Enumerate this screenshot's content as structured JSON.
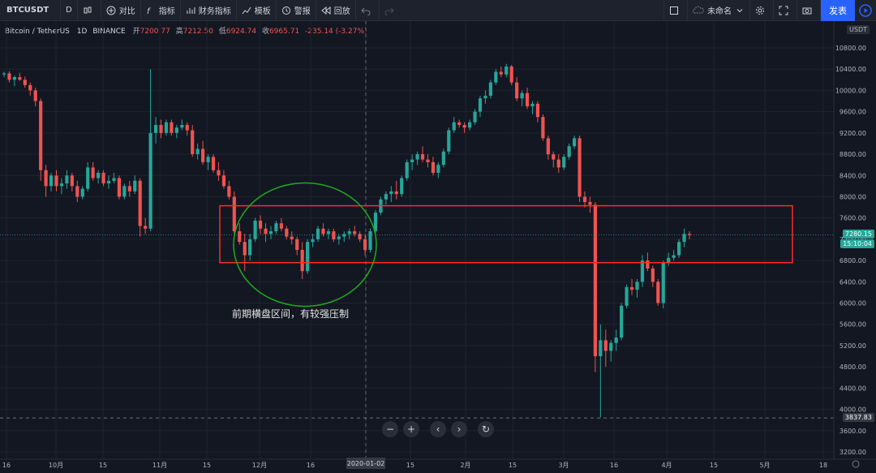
{
  "toolbar": {
    "symbol": "BTCUSDT",
    "interval": "D",
    "compare": "对比",
    "indicators": "指标",
    "financials": "财务指标",
    "templates": "模板",
    "alerts": "警报",
    "replay": "回放",
    "layout_name": "未命名",
    "publish": "发表"
  },
  "legend": {
    "name": "Bitcoin / TetherUS",
    "interval": "1D",
    "exchange": "BINANCE",
    "open_label": "开",
    "open": "7200.77",
    "high_label": "高",
    "high": "7212.50",
    "low_label": "低",
    "low": "6924.74",
    "close_label": "收",
    "close": "6965.71",
    "change": "-235.14 (-3.27%)"
  },
  "annotation": "前期横盘区间，有较强压制",
  "currency_tag": "USDT",
  "last_price": "7280.15",
  "countdown": "15:10:04",
  "crosshair_price": "3837.83",
  "crosshair_date": "2020-01-02",
  "colors": {
    "up": "#26a69a",
    "down": "#ef5350",
    "box": "#ff2b2b",
    "circle": "#1faa1f",
    "accent": "#2962ff"
  },
  "icons": [
    "compare-icon",
    "indicators-icon",
    "financials-icon",
    "templates-icon",
    "alert-icon",
    "replay-icon",
    "undo-icon",
    "redo-icon",
    "fullscreen-icon",
    "camera-icon",
    "settings-icon",
    "cloud-icon",
    "play-icon",
    "zoom-out-icon",
    "zoom-in-icon",
    "scroll-left-icon",
    "scroll-right-icon",
    "reset-icon"
  ],
  "chart_data": {
    "type": "candlestick",
    "y_axis_ticks": [
      10800,
      10400,
      10000,
      9600,
      9200,
      8800,
      8400,
      8000,
      7600,
      7200,
      6800,
      6400,
      6000,
      5600,
      5200,
      4800,
      4400,
      4000,
      3600,
      3200
    ],
    "ylim": [
      3200,
      11000
    ],
    "x_axis_ticks": [
      "16",
      "10月",
      "15",
      "11月",
      "15",
      "12月",
      "16",
      "2020-01-02",
      "15",
      "2月",
      "15",
      "3月",
      "16",
      "4月",
      "15",
      "5月",
      "18"
    ],
    "candles": [
      [
        10300,
        10350,
        10250,
        10320
      ],
      [
        10320,
        10360,
        10150,
        10200
      ],
      [
        10200,
        10280,
        10080,
        10250
      ],
      [
        10250,
        10330,
        10180,
        10200
      ],
      [
        10200,
        10260,
        10050,
        10100
      ],
      [
        10100,
        10150,
        9900,
        10000
      ],
      [
        10000,
        10050,
        9700,
        9800
      ],
      [
        9800,
        9850,
        8300,
        8500
      ],
      [
        8500,
        8600,
        8000,
        8200
      ],
      [
        8200,
        8450,
        8100,
        8400
      ],
      [
        8400,
        8500,
        8100,
        8200
      ],
      [
        8200,
        8350,
        8050,
        8250
      ],
      [
        8250,
        8500,
        8150,
        8400
      ],
      [
        8400,
        8450,
        8100,
        8200
      ],
      [
        8200,
        8300,
        7900,
        8000
      ],
      [
        8000,
        8200,
        7950,
        8150
      ],
      [
        8150,
        8650,
        8100,
        8550
      ],
      [
        8550,
        8650,
        8300,
        8350
      ],
      [
        8350,
        8500,
        8250,
        8450
      ],
      [
        8450,
        8500,
        8200,
        8250
      ],
      [
        8250,
        8400,
        8150,
        8300
      ],
      [
        8300,
        8450,
        8250,
        8350
      ],
      [
        8350,
        8400,
        7950,
        8000
      ],
      [
        8000,
        8250,
        7950,
        8200
      ],
      [
        8200,
        8300,
        8000,
        8100
      ],
      [
        8100,
        8400,
        8050,
        8300
      ],
      [
        8300,
        8350,
        7250,
        7450
      ],
      [
        7450,
        7600,
        7300,
        7400
      ],
      [
        7400,
        10400,
        7350,
        9200
      ],
      [
        9200,
        9500,
        9000,
        9350
      ],
      [
        9350,
        9450,
        9100,
        9200
      ],
      [
        9200,
        9450,
        9150,
        9400
      ],
      [
        9400,
        9450,
        9150,
        9200
      ],
      [
        9200,
        9350,
        9100,
        9300
      ],
      [
        9300,
        9450,
        9250,
        9350
      ],
      [
        9350,
        9400,
        9150,
        9250
      ],
      [
        9250,
        9350,
        8750,
        8800
      ],
      [
        8800,
        9000,
        8700,
        8900
      ],
      [
        8900,
        9050,
        8600,
        8650
      ],
      [
        8650,
        8800,
        8500,
        8750
      ],
      [
        8750,
        8800,
        8450,
        8500
      ],
      [
        8500,
        8650,
        8300,
        8400
      ],
      [
        8400,
        8500,
        8150,
        8200
      ],
      [
        8200,
        8300,
        7950,
        8000
      ],
      [
        8000,
        8100,
        7300,
        7350
      ],
      [
        7350,
        7500,
        7100,
        7150
      ],
      [
        7150,
        7300,
        6600,
        6900
      ],
      [
        6900,
        7300,
        6800,
        7200
      ],
      [
        7200,
        7600,
        7150,
        7550
      ],
      [
        7550,
        7650,
        7300,
        7400
      ],
      [
        7400,
        7500,
        7150,
        7300
      ],
      [
        7300,
        7450,
        7200,
        7350
      ],
      [
        7350,
        7550,
        7300,
        7500
      ],
      [
        7500,
        7600,
        7350,
        7400
      ],
      [
        7400,
        7450,
        7200,
        7250
      ],
      [
        7250,
        7350,
        7100,
        7200
      ],
      [
        7200,
        7250,
        6900,
        7000
      ],
      [
        7000,
        7150,
        6450,
        6600
      ],
      [
        6600,
        7200,
        6550,
        7150
      ],
      [
        7150,
        7300,
        7050,
        7200
      ],
      [
        7200,
        7450,
        7150,
        7400
      ],
      [
        7400,
        7500,
        7250,
        7300
      ],
      [
        7300,
        7400,
        7200,
        7350
      ],
      [
        7350,
        7400,
        7150,
        7200
      ],
      [
        7200,
        7300,
        7100,
        7250
      ],
      [
        7250,
        7350,
        7150,
        7300
      ],
      [
        7300,
        7400,
        7200,
        7350
      ],
      [
        7350,
        7450,
        7250,
        7300
      ],
      [
        7300,
        7350,
        7150,
        7200
      ],
      [
        7200,
        7300,
        6900,
        7000
      ],
      [
        7000,
        7400,
        6950,
        7350
      ],
      [
        7350,
        7750,
        7300,
        7700
      ],
      [
        7700,
        8000,
        7650,
        7950
      ],
      [
        7950,
        8100,
        7850,
        8050
      ],
      [
        8050,
        8200,
        7900,
        8100
      ],
      [
        8100,
        8300,
        7950,
        8050
      ],
      [
        8050,
        8400,
        8000,
        8350
      ],
      [
        8350,
        8700,
        8300,
        8650
      ],
      [
        8650,
        8800,
        8500,
        8700
      ],
      [
        8700,
        8850,
        8600,
        8800
      ],
      [
        8800,
        8950,
        8650,
        8700
      ],
      [
        8700,
        8800,
        8550,
        8650
      ],
      [
        8650,
        8750,
        8400,
        8450
      ],
      [
        8450,
        8650,
        8350,
        8600
      ],
      [
        8600,
        8900,
        8550,
        8850
      ],
      [
        8850,
        9300,
        8800,
        9250
      ],
      [
        9250,
        9500,
        9200,
        9400
      ],
      [
        9400,
        9450,
        9300,
        9350
      ],
      [
        9350,
        9400,
        9200,
        9300
      ],
      [
        9300,
        9450,
        9250,
        9400
      ],
      [
        9400,
        9650,
        9350,
        9600
      ],
      [
        9600,
        9900,
        9500,
        9850
      ],
      [
        9850,
        10000,
        9750,
        9900
      ],
      [
        9900,
        10200,
        9850,
        10150
      ],
      [
        10150,
        10400,
        10100,
        10350
      ],
      [
        10350,
        10450,
        10250,
        10300
      ],
      [
        10300,
        10500,
        10250,
        10450
      ],
      [
        10450,
        10480,
        10100,
        10150
      ],
      [
        10150,
        10250,
        9800,
        9850
      ],
      [
        9850,
        10000,
        9700,
        9950
      ],
      [
        9950,
        10050,
        9650,
        9700
      ],
      [
        9700,
        9800,
        9550,
        9750
      ],
      [
        9750,
        9800,
        9400,
        9500
      ],
      [
        9500,
        9550,
        9050,
        9100
      ],
      [
        9100,
        9150,
        8700,
        8800
      ],
      [
        8800,
        8850,
        8550,
        8700
      ],
      [
        8700,
        8800,
        8450,
        8550
      ],
      [
        8550,
        8800,
        8500,
        8750
      ],
      [
        8750,
        9000,
        8700,
        8950
      ],
      [
        8950,
        9150,
        8900,
        9100
      ],
      [
        9100,
        9150,
        7900,
        8000
      ],
      [
        8000,
        8100,
        7800,
        7900
      ],
      [
        7900,
        8000,
        7700,
        7850
      ],
      [
        7850,
        7900,
        4700,
        5000
      ],
      [
        5000,
        5600,
        3850,
        5300
      ],
      [
        5300,
        5500,
        4800,
        5100
      ],
      [
        5100,
        5300,
        4900,
        5250
      ],
      [
        5250,
        5500,
        5100,
        5350
      ],
      [
        5350,
        6000,
        5300,
        5950
      ],
      [
        5950,
        6350,
        5900,
        6300
      ],
      [
        6300,
        6450,
        6150,
        6250
      ],
      [
        6250,
        6450,
        6100,
        6400
      ],
      [
        6400,
        6900,
        6300,
        6800
      ],
      [
        6800,
        6950,
        6600,
        6650
      ],
      [
        6650,
        6700,
        6300,
        6400
      ],
      [
        6400,
        6450,
        5950,
        6000
      ],
      [
        6000,
        6800,
        5900,
        6750
      ],
      [
        6750,
        6950,
        6700,
        6850
      ],
      [
        6850,
        7000,
        6800,
        6900
      ],
      [
        6900,
        7200,
        6850,
        7150
      ],
      [
        7150,
        7400,
        7050,
        7300
      ],
      [
        7300,
        7350,
        7200,
        7280
      ]
    ]
  }
}
